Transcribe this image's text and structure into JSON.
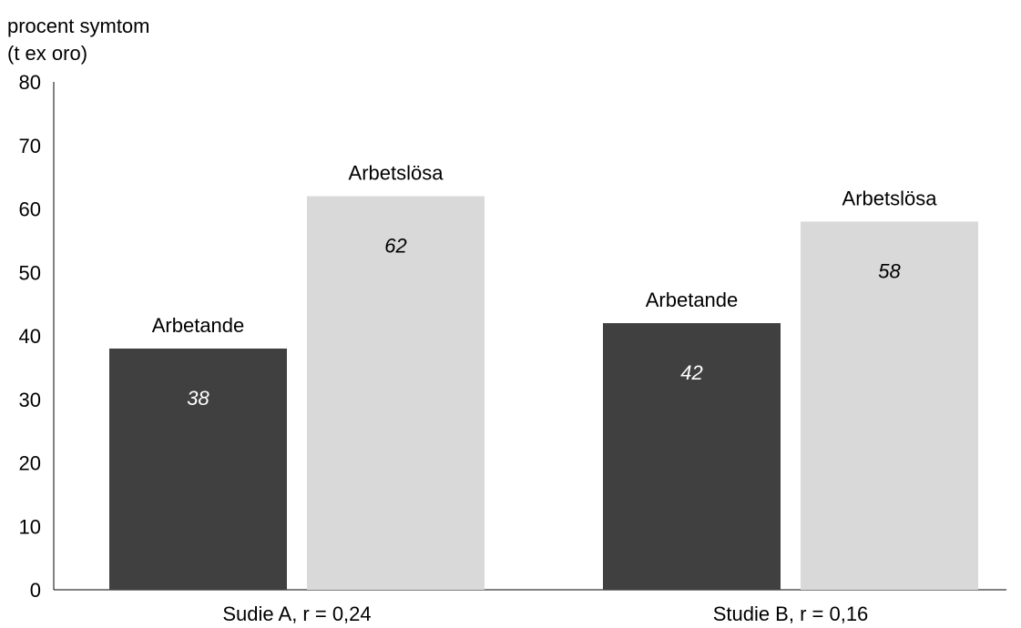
{
  "chart_data": {
    "type": "bar",
    "ylabel_lines": [
      "procent symtom",
      "(t ex oro)"
    ],
    "categories": [
      "Sudie A, r = 0,24",
      "Studie B, r = 0,16"
    ],
    "series": [
      {
        "name": "Arbetande",
        "values": [
          38,
          42
        ],
        "value_labels": [
          "38",
          "42"
        ],
        "color": "#404040",
        "label_color": "#ffffff"
      },
      {
        "name": "Arbetslösa",
        "values": [
          62,
          58
        ],
        "value_labels": [
          "62",
          "58"
        ],
        "color": "#d9d9d9",
        "label_color": "#000000"
      }
    ],
    "ylim": [
      0,
      80
    ],
    "yticks": [
      0,
      10,
      20,
      30,
      40,
      50,
      60,
      70,
      80
    ],
    "grid": false,
    "legend": "none"
  }
}
